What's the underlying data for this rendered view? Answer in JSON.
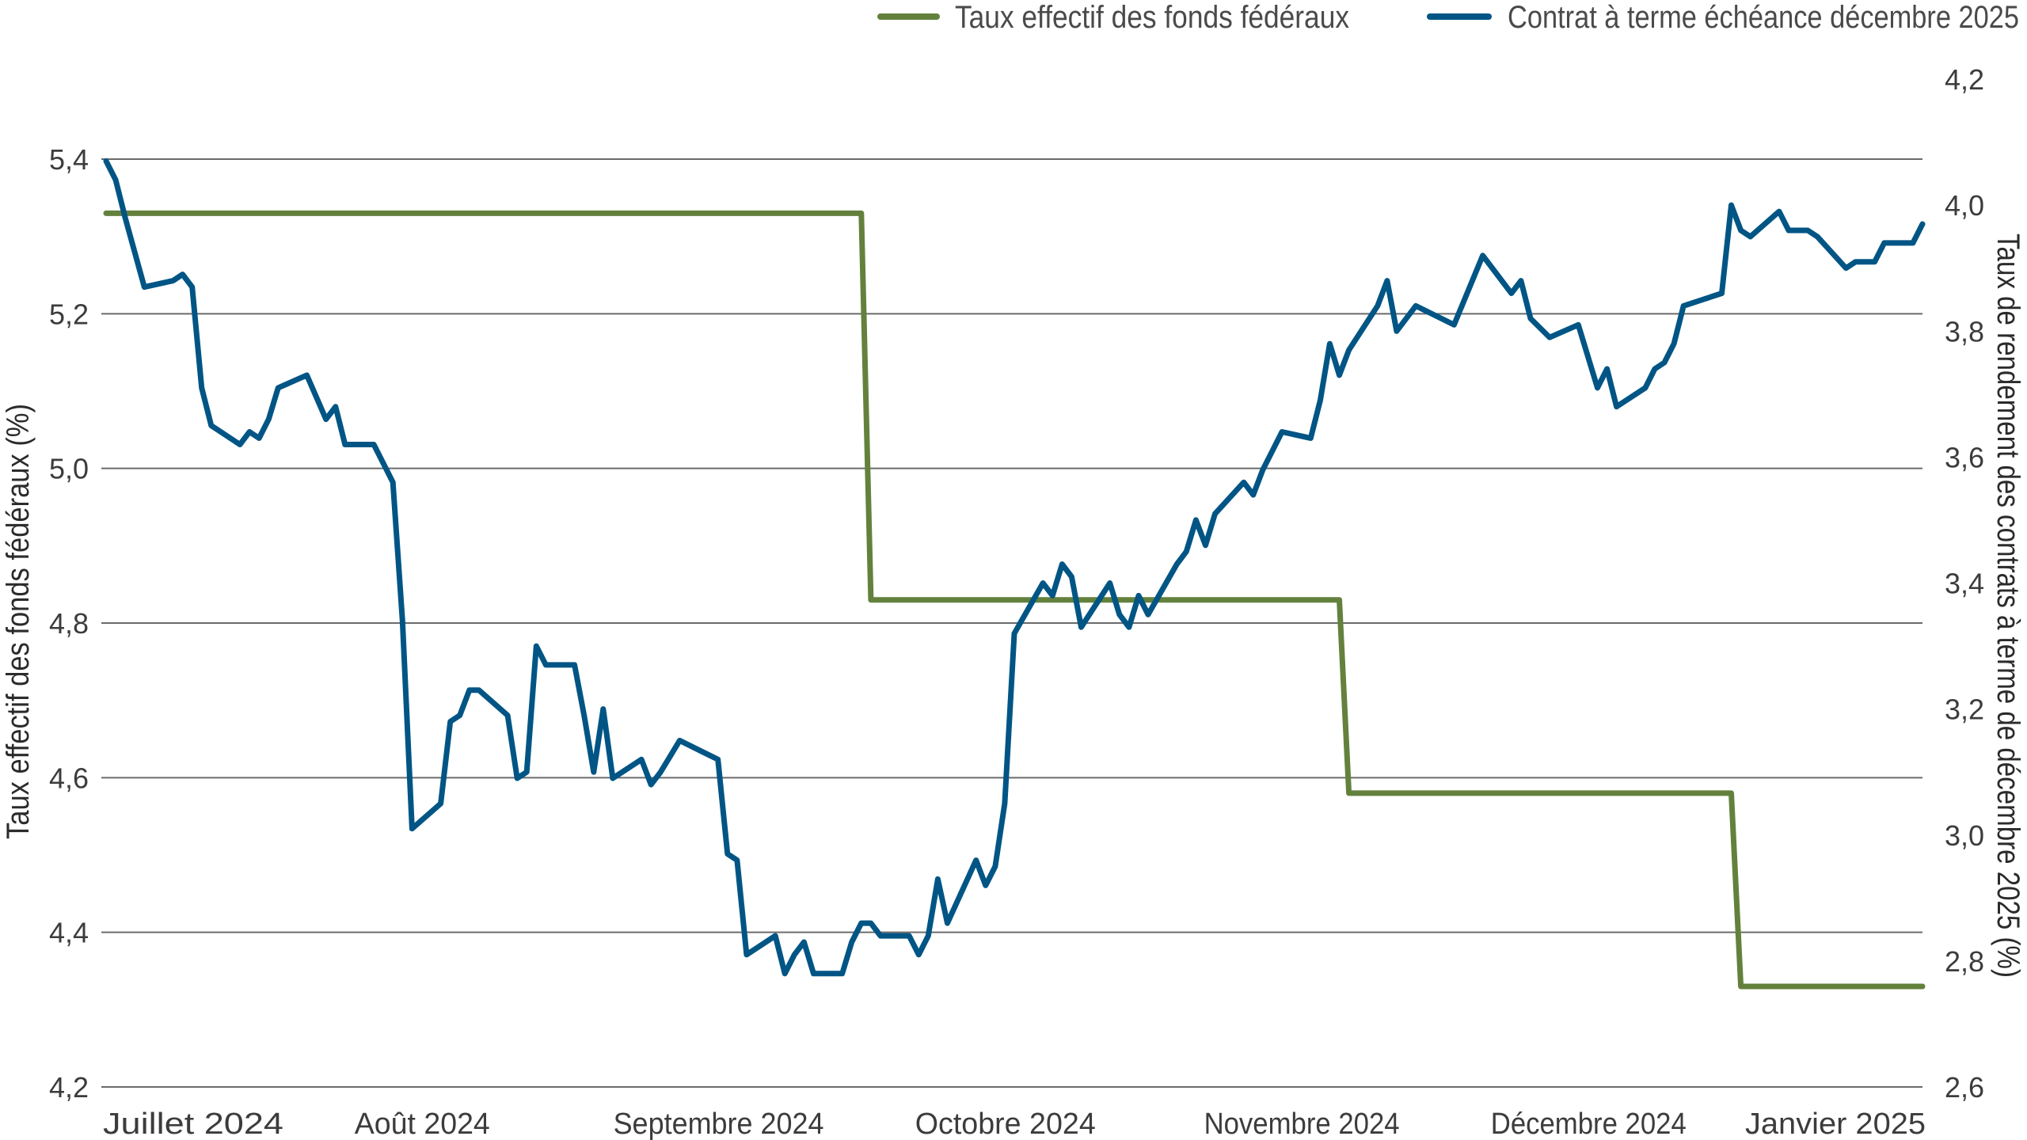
{
  "chart_data": {
    "type": "line",
    "title": "",
    "legend_position": "top-right",
    "grid": true,
    "x_range": [
      "2024-07-01",
      "2025-01-07"
    ],
    "x_tick_labels": [
      {
        "date": "2024-07-01",
        "label": "Juillet 2024"
      },
      {
        "date": "2024-08-01",
        "label": "Août 2024"
      },
      {
        "date": "2024-09-01",
        "label": "Septembre 2024"
      },
      {
        "date": "2024-10-01",
        "label": "Octobre 2024"
      },
      {
        "date": "2024-11-01",
        "label": "Novembre 2024"
      },
      {
        "date": "2024-12-01",
        "label": "Décembre 2024"
      },
      {
        "date": "2025-01-01",
        "label": "Janvier 2025"
      }
    ],
    "left_axis": {
      "label": "Taux effectif des fonds fédéraux (%)",
      "range": [
        4.2,
        5.4
      ],
      "ticks": [
        "5,4",
        "5,2",
        "5,0",
        "4,8",
        "4,6",
        "4,4",
        "4,2"
      ],
      "tick_values": [
        5.4,
        5.2,
        5.0,
        4.8,
        4.6,
        4.4,
        4.2
      ]
    },
    "right_axis": {
      "label": "Taux de rendement des contrats à terme de décembre 2025 (%)",
      "range": [
        2.6,
        4.2
      ],
      "ticks": [
        "4,2",
        "4,0",
        "3,8",
        "3,6",
        "3,4",
        "3,2",
        "3,0",
        "2,8",
        "2,6"
      ],
      "tick_values": [
        4.2,
        4.0,
        3.8,
        3.6,
        3.4,
        3.2,
        3.0,
        2.8,
        2.6
      ]
    },
    "series": [
      {
        "name": "Taux effectif des fonds fédéraux",
        "axis": "left",
        "color": "#63813c",
        "points": [
          [
            "2024-07-01",
            5.33
          ],
          [
            "2024-09-18",
            5.33
          ],
          [
            "2024-09-19",
            4.83
          ],
          [
            "2024-11-07",
            4.83
          ],
          [
            "2024-11-08",
            4.58
          ],
          [
            "2024-12-18",
            4.58
          ],
          [
            "2024-12-19",
            4.33
          ],
          [
            "2025-01-07",
            4.33
          ]
        ]
      },
      {
        "name": "Contrat à terme échéance décembre 2025",
        "axis": "right",
        "color": "#005585",
        "points": [
          [
            "2024-07-01",
            4.07
          ],
          [
            "2024-07-02",
            4.04
          ],
          [
            "2024-07-03",
            3.98
          ],
          [
            "2024-07-05",
            3.87
          ],
          [
            "2024-07-08",
            3.88
          ],
          [
            "2024-07-09",
            3.89
          ],
          [
            "2024-07-10",
            3.87
          ],
          [
            "2024-07-11",
            3.71
          ],
          [
            "2024-07-12",
            3.65
          ],
          [
            "2024-07-15",
            3.62
          ],
          [
            "2024-07-16",
            3.64
          ],
          [
            "2024-07-17",
            3.63
          ],
          [
            "2024-07-18",
            3.66
          ],
          [
            "2024-07-19",
            3.71
          ],
          [
            "2024-07-22",
            3.73
          ],
          [
            "2024-07-24",
            3.66
          ],
          [
            "2024-07-25",
            3.68
          ],
          [
            "2024-07-26",
            3.62
          ],
          [
            "2024-07-29",
            3.62
          ],
          [
            "2024-07-31",
            3.56
          ],
          [
            "2024-08-01",
            3.34
          ],
          [
            "2024-08-02",
            3.01
          ],
          [
            "2024-08-05",
            3.05
          ],
          [
            "2024-08-06",
            3.18
          ],
          [
            "2024-08-07",
            3.19
          ],
          [
            "2024-08-08",
            3.23
          ],
          [
            "2024-08-09",
            3.23
          ],
          [
            "2024-08-12",
            3.19
          ],
          [
            "2024-08-13",
            3.09
          ],
          [
            "2024-08-14",
            3.1
          ],
          [
            "2024-08-15",
            3.3
          ],
          [
            "2024-08-16",
            3.27
          ],
          [
            "2024-08-19",
            3.27
          ],
          [
            "2024-08-20",
            3.19
          ],
          [
            "2024-08-21",
            3.1
          ],
          [
            "2024-08-22",
            3.2
          ],
          [
            "2024-08-23",
            3.09
          ],
          [
            "2024-08-26",
            3.12
          ],
          [
            "2024-08-27",
            3.08
          ],
          [
            "2024-08-28",
            3.1
          ],
          [
            "2024-08-30",
            3.15
          ],
          [
            "2024-09-03",
            3.12
          ],
          [
            "2024-09-04",
            2.97
          ],
          [
            "2024-09-05",
            2.96
          ],
          [
            "2024-09-06",
            2.81
          ],
          [
            "2024-09-09",
            2.84
          ],
          [
            "2024-09-10",
            2.78
          ],
          [
            "2024-09-11",
            2.81
          ],
          [
            "2024-09-12",
            2.83
          ],
          [
            "2024-09-13",
            2.78
          ],
          [
            "2024-09-16",
            2.78
          ],
          [
            "2024-09-17",
            2.83
          ],
          [
            "2024-09-18",
            2.86
          ],
          [
            "2024-09-19",
            2.86
          ],
          [
            "2024-09-20",
            2.84
          ],
          [
            "2024-09-23",
            2.84
          ],
          [
            "2024-09-24",
            2.81
          ],
          [
            "2024-09-25",
            2.84
          ],
          [
            "2024-09-26",
            2.93
          ],
          [
            "2024-09-27",
            2.86
          ],
          [
            "2024-09-30",
            2.96
          ],
          [
            "2024-10-01",
            2.92
          ],
          [
            "2024-10-02",
            2.95
          ],
          [
            "2024-10-03",
            3.05
          ],
          [
            "2024-10-04",
            3.32
          ],
          [
            "2024-10-07",
            3.4
          ],
          [
            "2024-10-08",
            3.38
          ],
          [
            "2024-10-09",
            3.43
          ],
          [
            "2024-10-10",
            3.41
          ],
          [
            "2024-10-11",
            3.33
          ],
          [
            "2024-10-14",
            3.4
          ],
          [
            "2024-10-15",
            3.35
          ],
          [
            "2024-10-16",
            3.33
          ],
          [
            "2024-10-17",
            3.38
          ],
          [
            "2024-10-18",
            3.35
          ],
          [
            "2024-10-21",
            3.43
          ],
          [
            "2024-10-22",
            3.45
          ],
          [
            "2024-10-23",
            3.5
          ],
          [
            "2024-10-24",
            3.46
          ],
          [
            "2024-10-25",
            3.51
          ],
          [
            "2024-10-28",
            3.56
          ],
          [
            "2024-10-29",
            3.54
          ],
          [
            "2024-10-30",
            3.58
          ],
          [
            "2024-10-31",
            3.61
          ],
          [
            "2024-11-01",
            3.64
          ],
          [
            "2024-11-04",
            3.63
          ],
          [
            "2024-11-05",
            3.69
          ],
          [
            "2024-11-06",
            3.78
          ],
          [
            "2024-11-07",
            3.73
          ],
          [
            "2024-11-08",
            3.77
          ],
          [
            "2024-11-11",
            3.84
          ],
          [
            "2024-11-12",
            3.88
          ],
          [
            "2024-11-13",
            3.8
          ],
          [
            "2024-11-14",
            3.82
          ],
          [
            "2024-11-15",
            3.84
          ],
          [
            "2024-11-19",
            3.81
          ],
          [
            "2024-11-22",
            3.92
          ],
          [
            "2024-11-25",
            3.86
          ],
          [
            "2024-11-26",
            3.88
          ],
          [
            "2024-11-27",
            3.82
          ],
          [
            "2024-11-29",
            3.79
          ],
          [
            "2024-12-02",
            3.81
          ],
          [
            "2024-12-04",
            3.71
          ],
          [
            "2024-12-05",
            3.74
          ],
          [
            "2024-12-06",
            3.68
          ],
          [
            "2024-12-09",
            3.71
          ],
          [
            "2024-12-10",
            3.74
          ],
          [
            "2024-12-11",
            3.75
          ],
          [
            "2024-12-12",
            3.78
          ],
          [
            "2024-12-13",
            3.84
          ],
          [
            "2024-12-17",
            3.86
          ],
          [
            "2024-12-18",
            4.0
          ],
          [
            "2024-12-19",
            3.96
          ],
          [
            "2024-12-20",
            3.95
          ],
          [
            "2024-12-23",
            3.99
          ],
          [
            "2024-12-24",
            3.96
          ],
          [
            "2024-12-26",
            3.96
          ],
          [
            "2024-12-27",
            3.95
          ],
          [
            "2024-12-30",
            3.9
          ],
          [
            "2024-12-31",
            3.91
          ],
          [
            "2025-01-02",
            3.91
          ],
          [
            "2025-01-03",
            3.94
          ],
          [
            "2025-01-06",
            3.94
          ],
          [
            "2025-01-07",
            3.97
          ]
        ]
      }
    ]
  }
}
